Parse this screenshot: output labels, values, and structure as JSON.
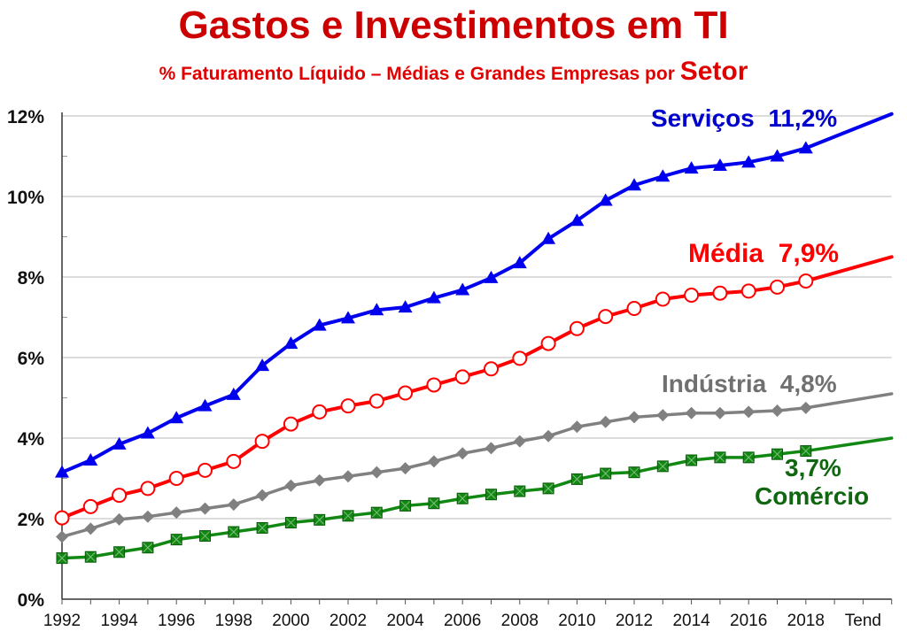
{
  "chart_data": {
    "type": "line",
    "title": "Gastos e Investimentos em TI",
    "subtitle": "% Faturamento Líquido – Médias e Grandes Empresas por",
    "subtitle_emphasis": "Setor",
    "xlabel": "",
    "ylabel": "",
    "x": [
      1992,
      1993,
      1994,
      1995,
      1996,
      1997,
      1998,
      1999,
      2000,
      2001,
      2002,
      2003,
      2004,
      2005,
      2006,
      2007,
      2008,
      2009,
      2010,
      2011,
      2012,
      2013,
      2014,
      2015,
      2016,
      2017,
      2018
    ],
    "x_tick_labels": [
      "1992",
      "1994",
      "1996",
      "1998",
      "2000",
      "2002",
      "2004",
      "2006",
      "2008",
      "2010",
      "2012",
      "2014",
      "2016",
      "2018",
      "Tend"
    ],
    "y_tick_labels": [
      "0%",
      "2%",
      "4%",
      "6%",
      "8%",
      "10%",
      "12%"
    ],
    "ylim": [
      0,
      12
    ],
    "grid": true,
    "series": [
      {
        "name": "Serviços",
        "label_value": "11,2%",
        "color": "#0000ee",
        "marker": "triangle",
        "values": [
          3.15,
          3.45,
          3.85,
          4.12,
          4.5,
          4.8,
          5.08,
          5.8,
          6.35,
          6.8,
          6.98,
          7.18,
          7.25,
          7.48,
          7.68,
          7.98,
          8.35,
          8.95,
          9.4,
          9.9,
          10.28,
          10.5,
          10.7,
          10.77,
          10.85,
          11.0,
          11.2
        ],
        "trend_end": 12.05
      },
      {
        "name": "Média",
        "label_value": "7,9%",
        "color": "#ff0000",
        "marker": "open-circle",
        "values": [
          2.02,
          2.3,
          2.58,
          2.75,
          3.0,
          3.2,
          3.42,
          3.92,
          4.35,
          4.65,
          4.8,
          4.92,
          5.12,
          5.32,
          5.52,
          5.72,
          5.98,
          6.35,
          6.72,
          7.02,
          7.22,
          7.45,
          7.55,
          7.6,
          7.65,
          7.75,
          7.9
        ],
        "trend_end": 8.5
      },
      {
        "name": "Indústria",
        "label_value": "4,8%",
        "color": "#808080",
        "marker": "diamond",
        "values": [
          1.55,
          1.75,
          1.98,
          2.05,
          2.15,
          2.25,
          2.35,
          2.58,
          2.82,
          2.95,
          3.05,
          3.15,
          3.25,
          3.42,
          3.62,
          3.75,
          3.92,
          4.05,
          4.28,
          4.4,
          4.52,
          4.57,
          4.62,
          4.62,
          4.65,
          4.68,
          4.75
        ],
        "trend_end": 5.1
      },
      {
        "name": "Comércio",
        "label_value": "3,7%",
        "color": "#118811",
        "marker": "square-x",
        "values": [
          1.02,
          1.05,
          1.17,
          1.28,
          1.48,
          1.57,
          1.67,
          1.77,
          1.9,
          1.97,
          2.07,
          2.15,
          2.32,
          2.38,
          2.5,
          2.6,
          2.68,
          2.75,
          2.98,
          3.12,
          3.15,
          3.3,
          3.45,
          3.52,
          3.52,
          3.6,
          3.68
        ],
        "trend_end": 4.0
      }
    ]
  }
}
